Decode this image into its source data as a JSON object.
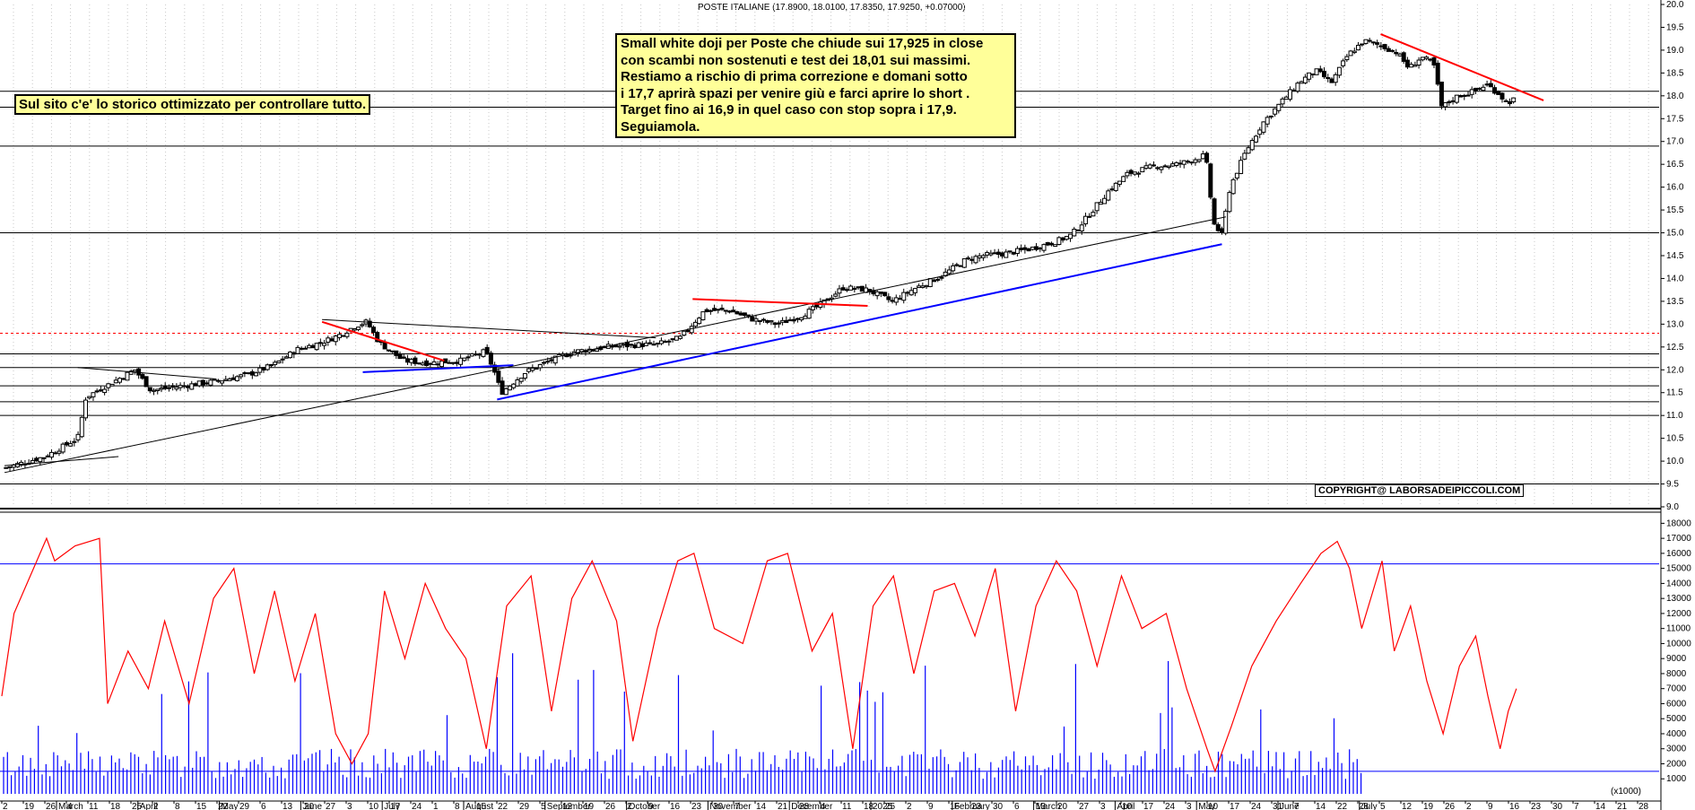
{
  "header": {
    "title": "POSTE ITALIANE (17.8900, 18.0100, 17.8350, 17.9250, +0.07000)"
  },
  "annotations": {
    "note_lines": [
      "Small white doji per Poste che chiude sui 17,925 in  close",
      "con scambi non sostenuti e test dei 18,01 sui massimi.",
      "Restiamo a rischio di prima correzione e domani sotto",
      "i 17,7 aprirà spazi per venire giù e farci aprire lo short .",
      "Target fino ai 16,9 in quel caso con stop sopra i 17,9.",
      "Seguiamola."
    ],
    "site_note": "Sul sito c'e' lo storico ottimizzato per controllare tutto.",
    "copyright": "COPYRIGHT@ LABORSADEIPICCOLI.COM"
  },
  "colors": {
    "candle": "#000000",
    "volume_bar": "#0000ff",
    "oscillator": "#ff0000",
    "support_line": "#0000ff",
    "resistance_line": "#ff0000",
    "trend_line": "#000000",
    "level_line": "#000000",
    "dashed_level": "#ff0000",
    "highlight_arrow": "#00aa00"
  },
  "chart_data": [
    {
      "type": "candlestick",
      "title": "POSTE ITALIANE (17.8900, 18.0100, 17.8350, 17.9250, +0.07000)",
      "ylim": [
        9.0,
        20.0
      ],
      "y_ticks": [
        "9.0",
        "9.5",
        "10.0",
        "10.5",
        "11.0",
        "11.5",
        "12.0",
        "12.5",
        "13.0",
        "13.5",
        "14.0",
        "14.5",
        "15.0",
        "15.5",
        "16.0",
        "16.5",
        "17.0",
        "17.5",
        "18.0",
        "18.5",
        "19.0",
        "19.5",
        "20.0"
      ],
      "months": [
        "March",
        "April",
        "May",
        "June",
        "July",
        "August",
        "September",
        "October",
        "November",
        "December",
        "2025",
        "February",
        "March",
        "April",
        "May",
        "June",
        "July"
      ],
      "x_day_ticks": [
        "2",
        "19",
        "26",
        "4",
        "11",
        "18",
        "25",
        "2",
        "8",
        "15",
        "22",
        "29",
        "6",
        "13",
        "20",
        "27",
        "3",
        "10",
        "17",
        "24",
        "1",
        "8",
        "15",
        "22",
        "29",
        "5",
        "12",
        "19",
        "26",
        "2",
        "9",
        "16",
        "23",
        "30",
        "7",
        "14",
        "21",
        "28",
        "4",
        "11",
        "18",
        "25",
        "2",
        "9",
        "16",
        "23",
        "30",
        "6",
        "13",
        "20",
        "27",
        "3",
        "10",
        "17",
        "24",
        "3",
        "10",
        "17",
        "24",
        "31",
        "7",
        "14",
        "22",
        "28",
        "5",
        "12",
        "19",
        "26",
        "2",
        "9",
        "16",
        "23",
        "30",
        "7",
        "14",
        "21",
        "28"
      ],
      "close_path": [
        {
          "m": 0.0,
          "v": 9.85
        },
        {
          "m": 0.5,
          "v": 10.1
        },
        {
          "m": 0.9,
          "v": 10.5
        },
        {
          "m": 1.0,
          "v": 11.4
        },
        {
          "m": 1.3,
          "v": 11.7
        },
        {
          "m": 1.6,
          "v": 12.0
        },
        {
          "m": 1.8,
          "v": 11.55
        },
        {
          "m": 2.2,
          "v": 11.65
        },
        {
          "m": 2.6,
          "v": 11.75
        },
        {
          "m": 3.0,
          "v": 11.9
        },
        {
          "m": 3.3,
          "v": 12.1
        },
        {
          "m": 3.6,
          "v": 12.45
        },
        {
          "m": 3.9,
          "v": 12.6
        },
        {
          "m": 4.1,
          "v": 12.75
        },
        {
          "m": 4.3,
          "v": 12.95
        },
        {
          "m": 4.45,
          "v": 13.05
        },
        {
          "m": 4.6,
          "v": 12.6
        },
        {
          "m": 4.9,
          "v": 12.2
        },
        {
          "m": 5.2,
          "v": 12.15
        },
        {
          "m": 5.6,
          "v": 12.2
        },
        {
          "m": 5.9,
          "v": 12.4
        },
        {
          "m": 6.0,
          "v": 12.05
        },
        {
          "m": 6.1,
          "v": 11.5
        },
        {
          "m": 6.4,
          "v": 11.95
        },
        {
          "m": 6.7,
          "v": 12.2
        },
        {
          "m": 7.0,
          "v": 12.4
        },
        {
          "m": 7.4,
          "v": 12.5
        },
        {
          "m": 7.8,
          "v": 12.55
        },
        {
          "m": 8.0,
          "v": 12.55
        },
        {
          "m": 8.3,
          "v": 12.7
        },
        {
          "m": 8.6,
          "v": 13.3
        },
        {
          "m": 8.9,
          "v": 13.3
        },
        {
          "m": 9.2,
          "v": 13.1
        },
        {
          "m": 9.5,
          "v": 13.0
        },
        {
          "m": 9.8,
          "v": 13.2
        },
        {
          "m": 10.0,
          "v": 13.4
        },
        {
          "m": 10.3,
          "v": 13.8
        },
        {
          "m": 10.6,
          "v": 13.75
        },
        {
          "m": 10.9,
          "v": 13.5
        },
        {
          "m": 11.2,
          "v": 13.8
        },
        {
          "m": 11.5,
          "v": 14.05
        },
        {
          "m": 11.8,
          "v": 14.4
        },
        {
          "m": 12.0,
          "v": 14.5
        },
        {
          "m": 12.3,
          "v": 14.55
        },
        {
          "m": 12.6,
          "v": 14.65
        },
        {
          "m": 12.9,
          "v": 14.8
        },
        {
          "m": 13.1,
          "v": 14.95
        },
        {
          "m": 13.3,
          "v": 15.35
        },
        {
          "m": 13.55,
          "v": 15.9
        },
        {
          "m": 13.8,
          "v": 16.3
        },
        {
          "m": 14.1,
          "v": 16.45
        },
        {
          "m": 14.4,
          "v": 16.5
        },
        {
          "m": 14.6,
          "v": 16.6
        },
        {
          "m": 14.75,
          "v": 16.7
        },
        {
          "m": 14.85,
          "v": 15.2
        },
        {
          "m": 14.95,
          "v": 14.95
        },
        {
          "m": 15.05,
          "v": 16.0
        },
        {
          "m": 15.25,
          "v": 16.8
        },
        {
          "m": 15.45,
          "v": 17.4
        },
        {
          "m": 15.65,
          "v": 17.8
        },
        {
          "m": 15.9,
          "v": 18.3
        },
        {
          "m": 16.1,
          "v": 18.55
        },
        {
          "m": 16.3,
          "v": 18.3
        },
        {
          "m": 16.5,
          "v": 18.9
        },
        {
          "m": 16.7,
          "v": 19.2
        },
        {
          "m": 16.9,
          "v": 19.1
        },
        {
          "m": 17.1,
          "v": 18.95
        },
        {
          "m": 17.25,
          "v": 18.6
        },
        {
          "m": 17.4,
          "v": 18.85
        },
        {
          "m": 17.55,
          "v": 18.7
        },
        {
          "m": 17.65,
          "v": 17.75
        },
        {
          "m": 17.85,
          "v": 18.0
        },
        {
          "m": 18.05,
          "v": 18.1
        },
        {
          "m": 18.2,
          "v": 18.25
        },
        {
          "m": 18.35,
          "v": 18.05
        },
        {
          "m": 18.45,
          "v": 17.85
        },
        {
          "m": 18.55,
          "v": 17.93
        }
      ],
      "horizontal_levels": [
        9.5,
        11.0,
        11.3,
        11.65,
        12.05,
        12.35,
        15.0,
        16.9,
        17.75,
        18.1
      ],
      "dashed_level": 12.8,
      "trend_lines": [
        {
          "color": "blue",
          "from": {
            "m": 6.05,
            "v": 11.35
          },
          "to": {
            "m": 14.95,
            "v": 14.75
          }
        },
        {
          "color": "blue",
          "from": {
            "m": 4.4,
            "v": 11.95
          },
          "to": {
            "m": 6.25,
            "v": 12.1
          }
        },
        {
          "color": "black",
          "from": {
            "m": 0.0,
            "v": 9.75
          },
          "to": {
            "m": 15.0,
            "v": 15.35
          }
        },
        {
          "color": "black",
          "from": {
            "m": 0.0,
            "v": 9.9
          },
          "to": {
            "m": 1.4,
            "v": 10.1
          }
        },
        {
          "color": "black",
          "from": {
            "m": 0.9,
            "v": 12.05
          },
          "to": {
            "m": 2.6,
            "v": 11.8
          }
        },
        {
          "color": "black",
          "from": {
            "m": 3.9,
            "v": 13.1
          },
          "to": {
            "m": 8.0,
            "v": 12.7
          }
        },
        {
          "color": "red",
          "from": {
            "m": 3.9,
            "v": 13.05
          },
          "to": {
            "m": 5.4,
            "v": 12.2
          }
        },
        {
          "color": "red",
          "from": {
            "m": 8.45,
            "v": 13.55
          },
          "to": {
            "m": 10.6,
            "v": 13.4
          }
        },
        {
          "color": "red",
          "from": {
            "m": 16.9,
            "v": 19.35
          },
          "to": {
            "m": 18.9,
            "v": 17.9
          }
        }
      ]
    },
    {
      "type": "bar+line",
      "y_ticks": [
        "1000",
        "2000",
        "3000",
        "4000",
        "5000",
        "6000",
        "7000",
        "8000",
        "9000",
        "10000",
        "11000",
        "12000",
        "13000",
        "14000",
        "15000",
        "16000",
        "17000",
        "18000"
      ],
      "ylim": [
        0,
        18500
      ],
      "unit_label": "(x1000)",
      "volume_baseline": 1500,
      "oscillator_reference": 15300,
      "oscillator_path": [
        {
          "m": 0.0,
          "v": 6500
        },
        {
          "m": 0.15,
          "v": 12000
        },
        {
          "m": 0.35,
          "v": 14500
        },
        {
          "m": 0.55,
          "v": 17000
        },
        {
          "m": 0.65,
          "v": 15500
        },
        {
          "m": 0.9,
          "v": 16500
        },
        {
          "m": 1.2,
          "v": 17000
        },
        {
          "m": 1.3,
          "v": 6000
        },
        {
          "m": 1.55,
          "v": 9500
        },
        {
          "m": 1.8,
          "v": 7000
        },
        {
          "m": 2.0,
          "v": 11500
        },
        {
          "m": 2.3,
          "v": 6000
        },
        {
          "m": 2.6,
          "v": 13000
        },
        {
          "m": 2.85,
          "v": 15000
        },
        {
          "m": 3.1,
          "v": 8000
        },
        {
          "m": 3.35,
          "v": 13500
        },
        {
          "m": 3.6,
          "v": 7500
        },
        {
          "m": 3.85,
          "v": 12000
        },
        {
          "m": 4.1,
          "v": 4000
        },
        {
          "m": 4.3,
          "v": 2000
        },
        {
          "m": 4.5,
          "v": 4000
        },
        {
          "m": 4.7,
          "v": 13500
        },
        {
          "m": 4.95,
          "v": 9000
        },
        {
          "m": 5.2,
          "v": 14000
        },
        {
          "m": 5.45,
          "v": 11000
        },
        {
          "m": 5.7,
          "v": 9000
        },
        {
          "m": 5.95,
          "v": 3000
        },
        {
          "m": 6.2,
          "v": 12500
        },
        {
          "m": 6.5,
          "v": 14500
        },
        {
          "m": 6.75,
          "v": 5500
        },
        {
          "m": 7.0,
          "v": 13000
        },
        {
          "m": 7.25,
          "v": 15500
        },
        {
          "m": 7.55,
          "v": 11500
        },
        {
          "m": 7.75,
          "v": 3500
        },
        {
          "m": 8.05,
          "v": 11000
        },
        {
          "m": 8.3,
          "v": 15500
        },
        {
          "m": 8.5,
          "v": 16000
        },
        {
          "m": 8.75,
          "v": 11000
        },
        {
          "m": 9.1,
          "v": 10000
        },
        {
          "m": 9.4,
          "v": 15500
        },
        {
          "m": 9.65,
          "v": 16000
        },
        {
          "m": 9.95,
          "v": 9500
        },
        {
          "m": 10.2,
          "v": 12000
        },
        {
          "m": 10.45,
          "v": 3000
        },
        {
          "m": 10.7,
          "v": 12500
        },
        {
          "m": 10.95,
          "v": 14500
        },
        {
          "m": 11.2,
          "v": 8000
        },
        {
          "m": 11.45,
          "v": 13500
        },
        {
          "m": 11.7,
          "v": 14000
        },
        {
          "m": 11.95,
          "v": 10500
        },
        {
          "m": 12.2,
          "v": 15000
        },
        {
          "m": 12.45,
          "v": 5500
        },
        {
          "m": 12.7,
          "v": 12500
        },
        {
          "m": 12.95,
          "v": 15500
        },
        {
          "m": 13.2,
          "v": 13500
        },
        {
          "m": 13.45,
          "v": 8500
        },
        {
          "m": 13.75,
          "v": 14500
        },
        {
          "m": 14.0,
          "v": 11000
        },
        {
          "m": 14.3,
          "v": 12000
        },
        {
          "m": 14.55,
          "v": 7000
        },
        {
          "m": 14.8,
          "v": 3000
        },
        {
          "m": 14.9,
          "v": 1500
        },
        {
          "m": 15.1,
          "v": 4500
        },
        {
          "m": 15.35,
          "v": 8500
        },
        {
          "m": 15.65,
          "v": 11500
        },
        {
          "m": 15.95,
          "v": 14000
        },
        {
          "m": 16.2,
          "v": 16000
        },
        {
          "m": 16.4,
          "v": 16800
        },
        {
          "m": 16.55,
          "v": 15000
        },
        {
          "m": 16.7,
          "v": 11000
        },
        {
          "m": 16.95,
          "v": 15500
        },
        {
          "m": 17.1,
          "v": 9500
        },
        {
          "m": 17.3,
          "v": 12500
        },
        {
          "m": 17.5,
          "v": 7500
        },
        {
          "m": 17.7,
          "v": 4000
        },
        {
          "m": 17.9,
          "v": 8500
        },
        {
          "m": 18.1,
          "v": 10500
        },
        {
          "m": 18.25,
          "v": 6500
        },
        {
          "m": 18.4,
          "v": 3000
        },
        {
          "m": 18.5,
          "v": 5500
        },
        {
          "m": 18.6,
          "v": 7000
        }
      ]
    }
  ]
}
